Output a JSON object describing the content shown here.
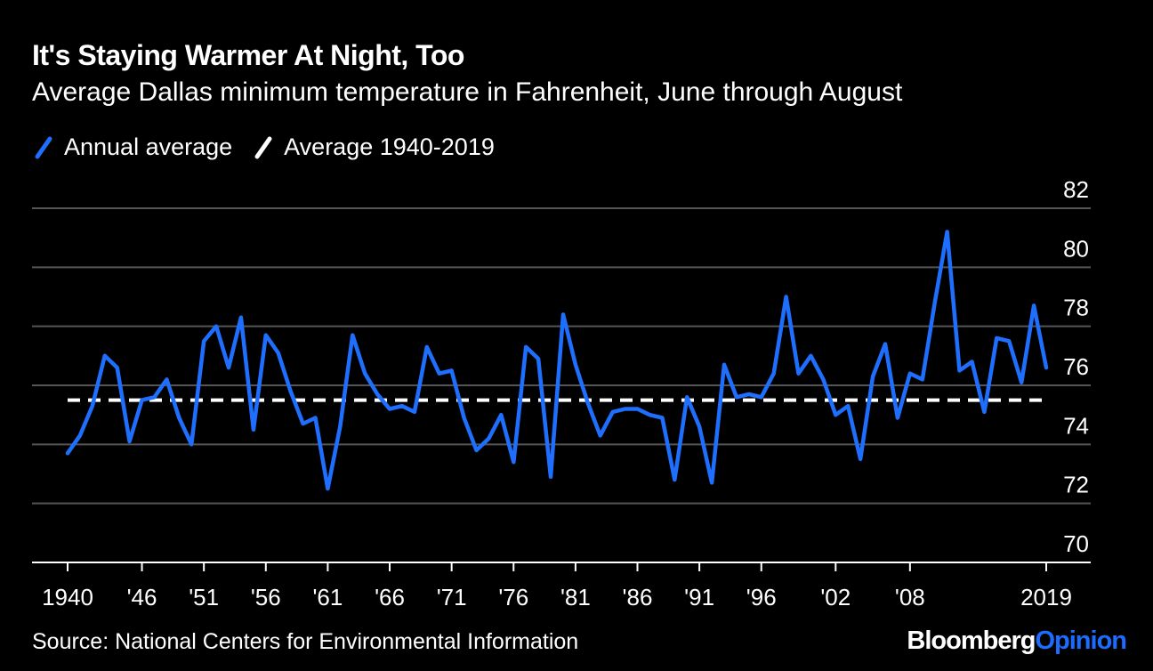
{
  "colors": {
    "background": "#000000",
    "series": "#1f6fff",
    "average_line": "#ffffff",
    "grid": "#555555",
    "text": "#ffffff",
    "brand_accent": "#1b6dff"
  },
  "chart_data": {
    "type": "line",
    "title": "It's Staying Warmer At Night, Too",
    "subtitle": "Average Dallas minimum temperature in Fahrenheit, June through August",
    "xlabel": "",
    "ylabel": "",
    "xlim": [
      1940,
      2019
    ],
    "ylim": [
      70,
      82
    ],
    "yticks": [
      70,
      72,
      74,
      76,
      78,
      80,
      82
    ],
    "xticks": [
      {
        "value": 1940,
        "label": "1940"
      },
      {
        "value": 1946,
        "label": "'46"
      },
      {
        "value": 1951,
        "label": "'51"
      },
      {
        "value": 1956,
        "label": "'56"
      },
      {
        "value": 1961,
        "label": "'61"
      },
      {
        "value": 1966,
        "label": "'66"
      },
      {
        "value": 1971,
        "label": "'71"
      },
      {
        "value": 1976,
        "label": "'76"
      },
      {
        "value": 1981,
        "label": "'81"
      },
      {
        "value": 1986,
        "label": "'86"
      },
      {
        "value": 1991,
        "label": "'91"
      },
      {
        "value": 1996,
        "label": "'96"
      },
      {
        "value": 2002,
        "label": "'02"
      },
      {
        "value": 2008,
        "label": "'08"
      },
      {
        "value": 2019,
        "label": "2019"
      }
    ],
    "legend_position": "top-left",
    "series": [
      {
        "name": "Annual average",
        "style": "solid",
        "x": [
          1940,
          1941,
          1942,
          1943,
          1944,
          1945,
          1946,
          1947,
          1948,
          1949,
          1950,
          1951,
          1952,
          1953,
          1954,
          1955,
          1956,
          1957,
          1958,
          1959,
          1960,
          1961,
          1962,
          1963,
          1964,
          1965,
          1966,
          1967,
          1968,
          1969,
          1970,
          1971,
          1972,
          1973,
          1974,
          1975,
          1976,
          1977,
          1978,
          1979,
          1980,
          1981,
          1982,
          1983,
          1984,
          1985,
          1986,
          1987,
          1988,
          1989,
          1990,
          1991,
          1992,
          1993,
          1994,
          1995,
          1996,
          1997,
          1998,
          1999,
          2000,
          2001,
          2002,
          2003,
          2004,
          2005,
          2006,
          2007,
          2008,
          2009,
          2010,
          2011,
          2012,
          2013,
          2014,
          2015,
          2016,
          2017,
          2018,
          2019
        ],
        "values": [
          73.7,
          74.3,
          75.3,
          77.0,
          76.6,
          74.1,
          75.5,
          75.6,
          76.2,
          74.9,
          74.0,
          77.5,
          78.0,
          76.6,
          78.3,
          74.5,
          77.7,
          77.1,
          75.8,
          74.7,
          74.9,
          72.5,
          74.6,
          77.7,
          76.4,
          75.7,
          75.2,
          75.3,
          75.1,
          77.3,
          76.4,
          76.5,
          74.9,
          73.8,
          74.2,
          75.0,
          73.4,
          77.3,
          76.9,
          72.9,
          78.4,
          76.7,
          75.4,
          74.3,
          75.1,
          75.2,
          75.2,
          75.0,
          74.9,
          72.8,
          75.6,
          74.6,
          72.7,
          76.7,
          75.6,
          75.7,
          75.6,
          76.4,
          79.0,
          76.4,
          77.0,
          76.2,
          75.0,
          75.3,
          73.5,
          76.3,
          77.4,
          74.9,
          76.4,
          76.2,
          78.8,
          81.2,
          76.5,
          76.8,
          75.1,
          77.6,
          77.5,
          76.1,
          78.7,
          76.6
        ]
      },
      {
        "name": "Average 1940-2019",
        "style": "dashed",
        "x": [
          1940,
          2019
        ],
        "values": [
          75.5,
          75.5
        ]
      }
    ]
  },
  "footer": {
    "source": "Source: National Centers for Environmental Information",
    "brand_part1": "Bloomberg",
    "brand_part2": "Opinion"
  }
}
